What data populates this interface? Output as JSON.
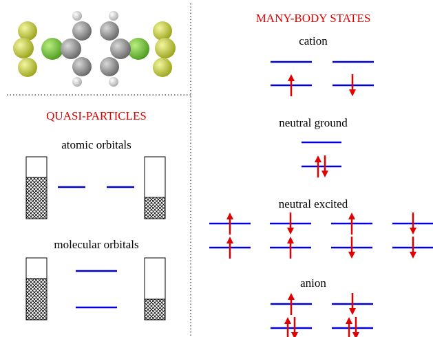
{
  "many_body": {
    "title": "MANY-BODY STATES",
    "cation": "cation",
    "neutral_ground": "neutral ground",
    "neutral_excited": "neutral excited",
    "anion": "anion"
  },
  "quasi_particles": {
    "title": "QUASI-PARTICLES",
    "atomic": "atomic orbitals",
    "molecular": "molecular orbitals"
  }
}
